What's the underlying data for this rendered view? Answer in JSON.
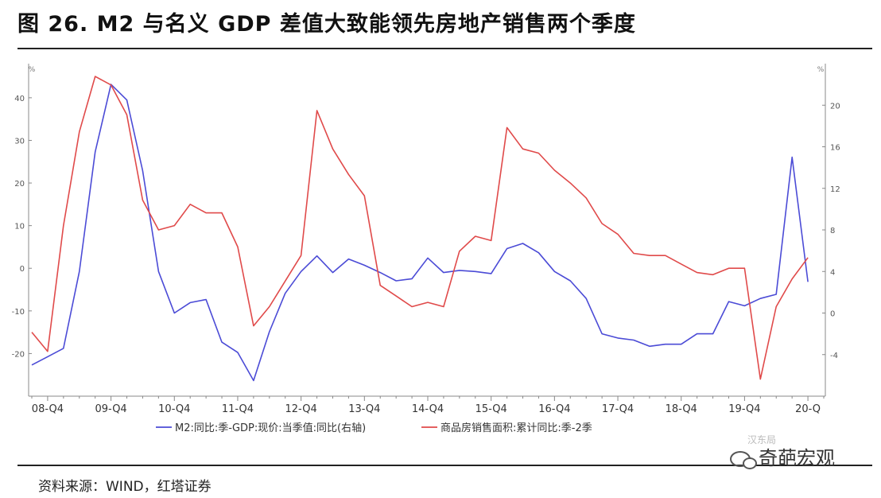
{
  "title": "图 26. M2 与名义 GDP 差值大致能领先房地产销售两个季度",
  "source": "资料来源：WIND，红塔证券",
  "watermark": {
    "text": "奇葩宏观",
    "faint": "汉东局"
  },
  "chart_data": {
    "type": "line",
    "x_tick_labels": [
      "08-Q4",
      "09-Q4",
      "10-Q4",
      "11-Q4",
      "12-Q4",
      "13-Q4",
      "14-Q4",
      "15-Q4",
      "16-Q4",
      "17-Q4",
      "18-Q4",
      "19-Q4",
      "20-Q"
    ],
    "left_axis": {
      "unit_label": "%",
      "ticks": [
        40,
        30,
        20,
        10,
        0,
        -10,
        -20
      ],
      "tick_labels": [
        "40",
        "30",
        "20",
        "10",
        "0",
        "-10",
        "-20"
      ],
      "ylim": [
        -30,
        48
      ]
    },
    "right_axis": {
      "unit_label": "%",
      "ticks": [
        20,
        16,
        12,
        8,
        4,
        0,
        -4
      ],
      "tick_labels": [
        "20",
        "16",
        "12",
        "8",
        "4",
        "0",
        "-4"
      ],
      "ylim": [
        -8,
        24
      ]
    },
    "grid": false,
    "legend_position": "bottom",
    "series": [
      {
        "name": "M2:同比:季-GDP:现价:当季值:同比(右轴)",
        "axis": "right",
        "color": "#4b4bd6",
        "x": [
          0,
          1,
          2,
          3,
          4,
          5,
          6,
          7,
          8,
          9,
          10,
          11,
          12,
          13,
          14,
          15,
          16,
          17,
          18,
          19,
          20,
          21,
          22,
          23,
          24,
          25,
          26,
          27,
          28,
          29,
          30,
          31,
          32,
          33,
          34,
          35,
          36,
          37,
          38,
          39,
          40,
          41,
          42,
          43,
          44,
          45,
          46,
          47,
          48,
          49
        ],
        "values": [
          -5.0,
          -4.2,
          -3.4,
          4.0,
          15.5,
          22.0,
          20.5,
          13.7,
          4.0,
          0.0,
          1.0,
          1.3,
          -2.8,
          -3.8,
          -6.5,
          -1.8,
          1.9,
          4.0,
          5.5,
          3.9,
          5.2,
          4.6,
          3.9,
          3.1,
          3.3,
          5.3,
          3.9,
          4.1,
          4.0,
          3.8,
          6.2,
          6.7,
          5.8,
          4.0,
          3.1,
          1.4,
          -2.0,
          -2.4,
          -2.6,
          -3.2,
          -3.0,
          -3.0,
          -2.0,
          -2.0,
          1.1,
          0.7,
          1.4,
          1.8,
          15.0,
          3.0
        ]
      },
      {
        "name": "商品房销售面积:累计同比:季-2季",
        "axis": "left",
        "color": "#e04a4a",
        "x": [
          0,
          1,
          2,
          3,
          4,
          5,
          6,
          7,
          8,
          9,
          10,
          11,
          12,
          13,
          14,
          15,
          16,
          17,
          18,
          19,
          20,
          21,
          22,
          23,
          24,
          25,
          26,
          27,
          28,
          29,
          30,
          31,
          32,
          33,
          34,
          35,
          36,
          37,
          38,
          39,
          40,
          41,
          42,
          43,
          44,
          45,
          46,
          47,
          48,
          49,
          50
        ],
        "values": [
          -15.0,
          -19.5,
          10.0,
          32.0,
          45.0,
          43.0,
          36.0,
          16.0,
          9.0,
          10.0,
          15.0,
          13.0,
          13.0,
          5.0,
          -13.5,
          -9.0,
          -3.0,
          3.0,
          37.0,
          28.0,
          22.0,
          17.0,
          -4.0,
          -6.5,
          -9.0,
          -8.0,
          -9.0,
          4.0,
          7.5,
          6.5,
          33.0,
          28.0,
          27.0,
          23.0,
          20.0,
          16.5,
          10.5,
          8.0,
          3.5,
          3.0,
          3.0,
          1.0,
          -1.0,
          -1.5,
          0.0,
          0.0,
          -26.0,
          -9.0,
          -2.5,
          2.5,
          null
        ]
      }
    ]
  }
}
